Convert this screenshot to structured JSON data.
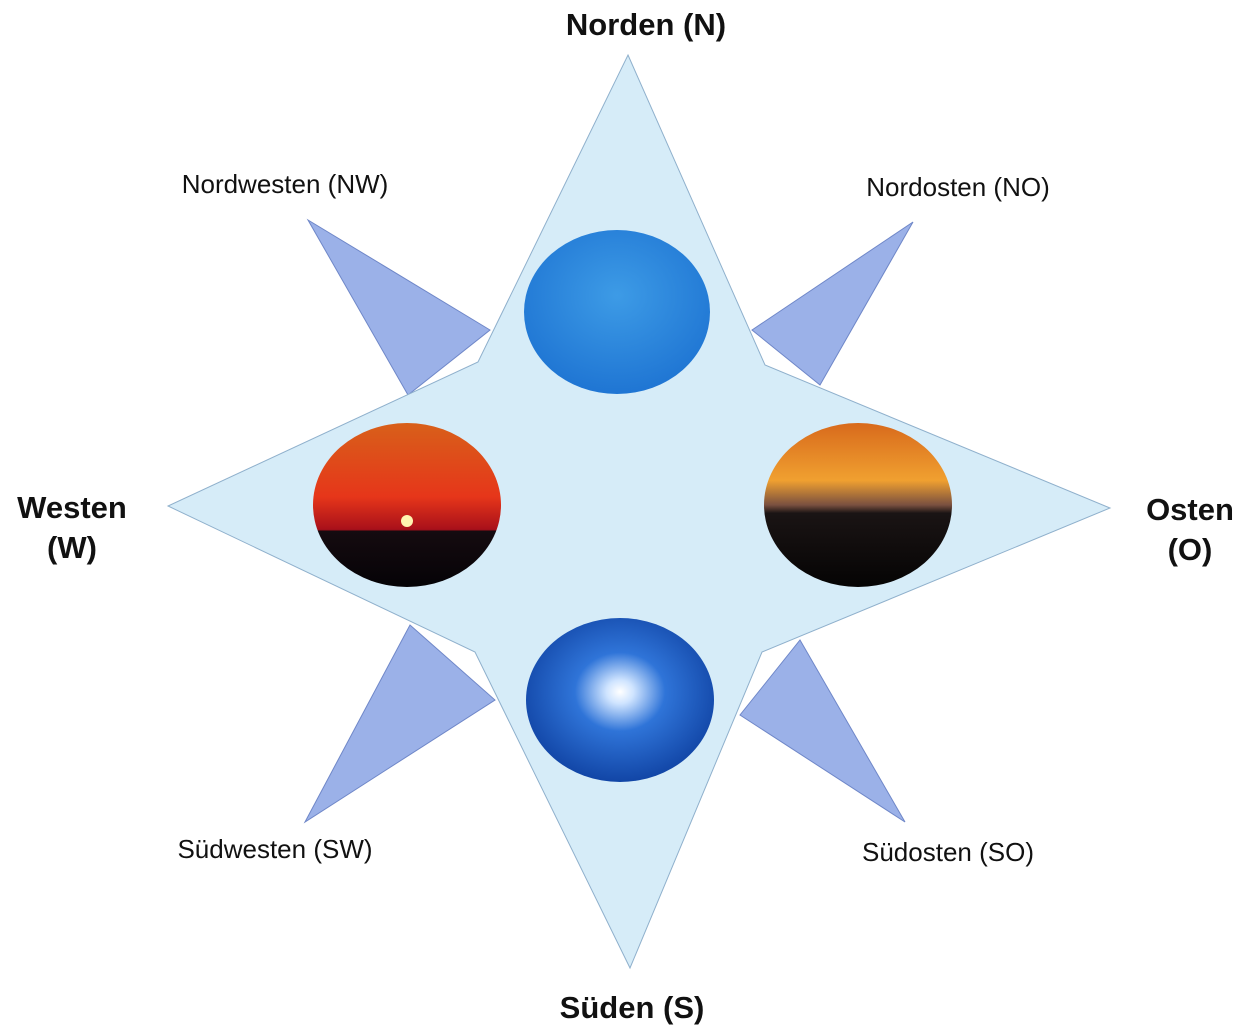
{
  "labels": {
    "north": "Norden (N)",
    "south": "Süden (S)",
    "west": [
      "Westen",
      "(W)"
    ],
    "east": [
      "Osten",
      "(O)"
    ],
    "northwest": "Nordwesten (NW)",
    "northeast": "Nordosten (NO)",
    "southwest": "Südwesten (SW)",
    "southeast": "Südosten (SO)"
  }
}
